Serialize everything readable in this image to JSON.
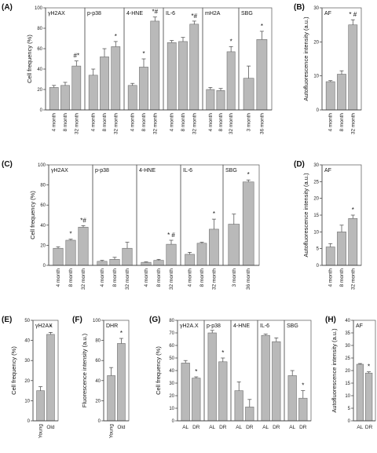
{
  "colors": {
    "bar": "#b9b9b9",
    "bar_stroke": "#6f6f6f",
    "axis": "#333333",
    "frame": "#555555"
  },
  "chart_data": [
    {
      "label": "(A)",
      "type": "bar",
      "ylabel": "Cell frequency (%)",
      "ylim": [
        0,
        100
      ],
      "yticks": [
        0,
        20,
        40,
        60,
        80,
        100
      ],
      "groups": [
        {
          "title": "γH2AX",
          "categories": [
            "4 month",
            "8 month",
            "32 month"
          ],
          "values": [
            22,
            24,
            43
          ],
          "errors": [
            2,
            3,
            5
          ],
          "sig": [
            "",
            "",
            "#*"
          ]
        },
        {
          "title": "p-p38",
          "categories": [
            "4 month",
            "8 month",
            "32 month"
          ],
          "values": [
            34,
            52,
            62
          ],
          "errors": [
            6,
            8,
            5
          ],
          "sig": [
            "",
            "",
            "*"
          ]
        },
        {
          "title": "4-HNE",
          "categories": [
            "4 month",
            "8 month",
            "32 month"
          ],
          "values": [
            24,
            42,
            87
          ],
          "errors": [
            2,
            8,
            4
          ],
          "sig": [
            "",
            "*",
            "*#"
          ]
        },
        {
          "title": "IL-6",
          "categories": [
            "4 month",
            "8 month",
            "32 month"
          ],
          "values": [
            66,
            67,
            84
          ],
          "errors": [
            2,
            4,
            3
          ],
          "sig": [
            "",
            "",
            "*#"
          ]
        },
        {
          "title": "mH2A",
          "categories": [
            "4 month",
            "8 month",
            "32 month"
          ],
          "values": [
            20,
            19,
            57
          ],
          "errors": [
            2,
            2,
            5
          ],
          "sig": [
            "",
            "",
            "*"
          ]
        },
        {
          "title": "SBG",
          "categories": [
            "3 month",
            "36 month"
          ],
          "values": [
            31,
            69
          ],
          "errors": [
            12,
            8
          ],
          "sig": [
            "",
            "*"
          ]
        }
      ]
    },
    {
      "label": "(B)",
      "type": "bar",
      "ylabel": "Autofluorescence intensity (a.u.)",
      "ylim": [
        0,
        30
      ],
      "yticks": [
        0,
        10,
        20,
        30
      ],
      "groups": [
        {
          "title": "AF",
          "categories": [
            "4 month",
            "8 month",
            "32 month"
          ],
          "values": [
            8.3,
            10.5,
            25
          ],
          "errors": [
            0.3,
            1.0,
            1.5
          ],
          "sig": [
            "",
            "",
            "* #"
          ]
        }
      ]
    },
    {
      "label": "(C)",
      "type": "bar",
      "ylabel": "Cell frequency (%)",
      "ylim": [
        0,
        100
      ],
      "yticks": [
        0,
        20,
        40,
        60,
        80,
        100
      ],
      "groups": [
        {
          "title": "γH2AX",
          "categories": [
            "4 month",
            "8 month",
            "32 month"
          ],
          "values": [
            17,
            25,
            38
          ],
          "errors": [
            1.5,
            1,
            1.5
          ],
          "sig": [
            "",
            "*",
            "*#"
          ]
        },
        {
          "title": "p-p38",
          "categories": [
            "4 month",
            "8 month",
            "32 month"
          ],
          "values": [
            4,
            6,
            17
          ],
          "errors": [
            1,
            2,
            6
          ],
          "sig": [
            "",
            "",
            ""
          ]
        },
        {
          "title": "4-HNE",
          "categories": [
            "4 month",
            "8 month",
            "32 month"
          ],
          "values": [
            3,
            5,
            21
          ],
          "errors": [
            0.5,
            1,
            4
          ],
          "sig": [
            "",
            "",
            "* #"
          ]
        },
        {
          "title": "IL-6",
          "categories": [
            "4 month",
            "8 month",
            "32 month"
          ],
          "values": [
            11,
            22,
            36
          ],
          "errors": [
            2,
            1,
            10
          ],
          "sig": [
            "",
            "",
            "*"
          ]
        },
        {
          "title": "SBG",
          "categories": [
            "3 month",
            "36 month"
          ],
          "values": [
            41,
            83
          ],
          "errors": [
            10,
            2
          ],
          "sig": [
            "",
            "*"
          ]
        }
      ]
    },
    {
      "label": "(D)",
      "type": "bar",
      "ylabel": "Autofluorescence intensity (a.u.)",
      "ylim": [
        0,
        30
      ],
      "yticks": [
        0,
        5,
        10,
        15,
        20,
        25,
        30
      ],
      "groups": [
        {
          "title": "AF",
          "categories": [
            "4 month",
            "8 month",
            "32 month"
          ],
          "values": [
            5.5,
            10,
            14
          ],
          "errors": [
            1,
            2,
            1
          ],
          "sig": [
            "",
            "",
            "*"
          ]
        }
      ]
    },
    {
      "label": "(E)",
      "type": "bar",
      "ylabel": "Cell frequency (%)",
      "ylim": [
        0,
        50
      ],
      "yticks": [
        0,
        10,
        20,
        30,
        40,
        50
      ],
      "groups": [
        {
          "title": "γH2AX",
          "categories": [
            "Young",
            "Old"
          ],
          "values": [
            15,
            43
          ],
          "errors": [
            2,
            1
          ],
          "sig": [
            "",
            "*"
          ]
        }
      ]
    },
    {
      "label": "(F)",
      "type": "bar",
      "ylabel": "Fluorescence intensity (a.u.)",
      "ylim": [
        0,
        100
      ],
      "yticks": [
        0,
        20,
        40,
        60,
        80,
        100
      ],
      "groups": [
        {
          "title": "DHR",
          "categories": [
            "Young",
            "Old"
          ],
          "values": [
            45,
            77
          ],
          "errors": [
            8,
            5
          ],
          "sig": [
            "",
            "*"
          ]
        }
      ]
    },
    {
      "label": "(G)",
      "type": "bar",
      "ylabel": "Cell frequency (%)",
      "ylim": [
        0,
        80
      ],
      "yticks": [
        0,
        10,
        20,
        30,
        40,
        50,
        60,
        70,
        80
      ],
      "groups": [
        {
          "title": "γH2A.X",
          "categories": [
            "AL",
            "DR"
          ],
          "values": [
            46,
            34
          ],
          "errors": [
            2,
            1
          ],
          "sig": [
            "",
            "*"
          ]
        },
        {
          "title": "p-p38",
          "categories": [
            "AL",
            "DR"
          ],
          "values": [
            70,
            47
          ],
          "errors": [
            2,
            3
          ],
          "sig": [
            "",
            "*"
          ]
        },
        {
          "title": "4-HNE",
          "categories": [
            "AL",
            "DR"
          ],
          "values": [
            24,
            11
          ],
          "errors": [
            7,
            6
          ],
          "sig": [
            "",
            ""
          ]
        },
        {
          "title": "IL-6",
          "categories": [
            "AL",
            "DR"
          ],
          "values": [
            68,
            63
          ],
          "errors": [
            1,
            3
          ],
          "sig": [
            "",
            ""
          ]
        },
        {
          "title": "SBG",
          "categories": [
            "AL",
            "DR"
          ],
          "values": [
            36,
            18
          ],
          "errors": [
            4,
            6
          ],
          "sig": [
            "",
            "*"
          ]
        }
      ]
    },
    {
      "label": "(H)",
      "type": "bar",
      "ylabel": "Autofluorescence intensity (a.u.)",
      "ylim": [
        0,
        40
      ],
      "yticks": [
        0,
        5,
        10,
        15,
        20,
        25,
        30,
        35,
        40
      ],
      "groups": [
        {
          "title": "AF",
          "categories": [
            "AL",
            "DR"
          ],
          "values": [
            22.5,
            19
          ],
          "errors": [
            0.3,
            0.5
          ],
          "sig": [
            "",
            "*"
          ]
        }
      ]
    }
  ]
}
